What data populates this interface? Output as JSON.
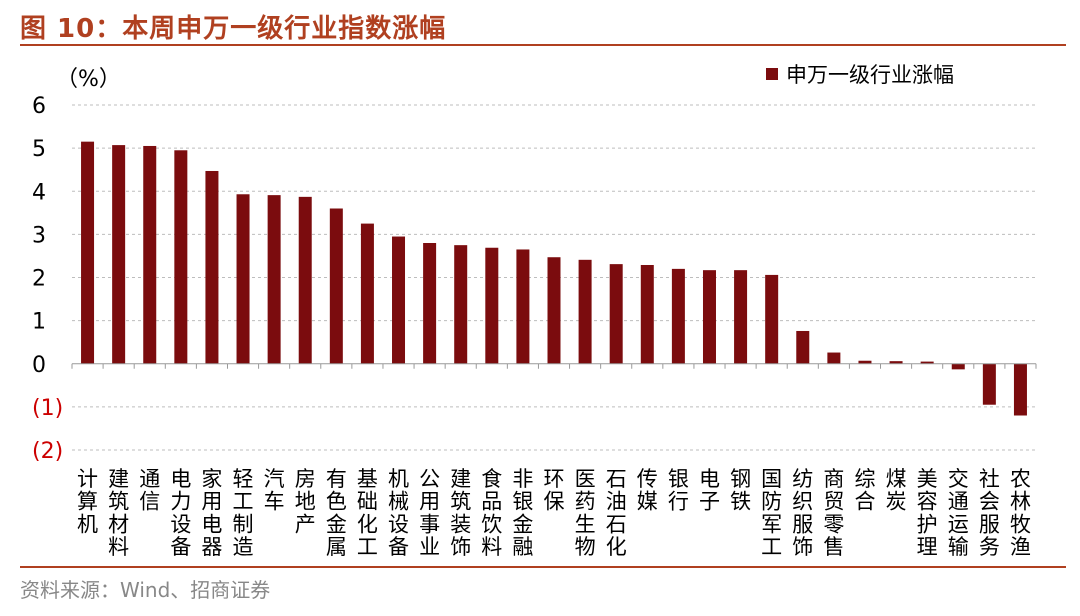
{
  "figure": {
    "title": "图 10：本周申万一级行业指数涨幅",
    "source": "资料来源：Wind、招商证券"
  },
  "colors": {
    "bar": "#7b0c0e",
    "accent": "#b04020",
    "negative_tick": "#cc0000"
  },
  "chart_data": {
    "type": "bar",
    "title": "",
    "ylabel": "（%）",
    "xlabel": "",
    "ylim": [
      -2,
      6
    ],
    "yticks": [
      6,
      5,
      4,
      3,
      2,
      1,
      0,
      -1,
      -2
    ],
    "ytick_labels": [
      "6",
      "5",
      "4",
      "3",
      "2",
      "1",
      "0",
      "(1)",
      "(2)"
    ],
    "grid": true,
    "legend": {
      "position": "top-right",
      "entries": [
        "申万一级行业涨幅"
      ]
    },
    "categories": [
      "计算机",
      "建筑材料",
      "通信",
      "电力设备",
      "家用电器",
      "轻工制造",
      "汽车",
      "房地产",
      "有色金属",
      "基础化工",
      "机械设备",
      "公用事业",
      "建筑装饰",
      "食品饮料",
      "非银金融",
      "环保",
      "医药生物",
      "石油石化",
      "传媒",
      "银行",
      "电子",
      "钢铁",
      "国防军工",
      "纺织服饰",
      "商贸零售",
      "综合",
      "煤炭",
      "美容护理",
      "交通运输",
      "社会服务",
      "农林牧渔"
    ],
    "series": [
      {
        "name": "申万一级行业涨幅",
        "values": [
          5.15,
          5.07,
          5.05,
          4.95,
          4.47,
          3.93,
          3.91,
          3.87,
          3.6,
          3.25,
          2.95,
          2.8,
          2.75,
          2.69,
          2.65,
          2.47,
          2.41,
          2.31,
          2.29,
          2.2,
          2.17,
          2.17,
          2.06,
          0.76,
          0.26,
          0.07,
          0.06,
          0.05,
          -0.13,
          -0.95,
          -1.2
        ]
      }
    ]
  }
}
